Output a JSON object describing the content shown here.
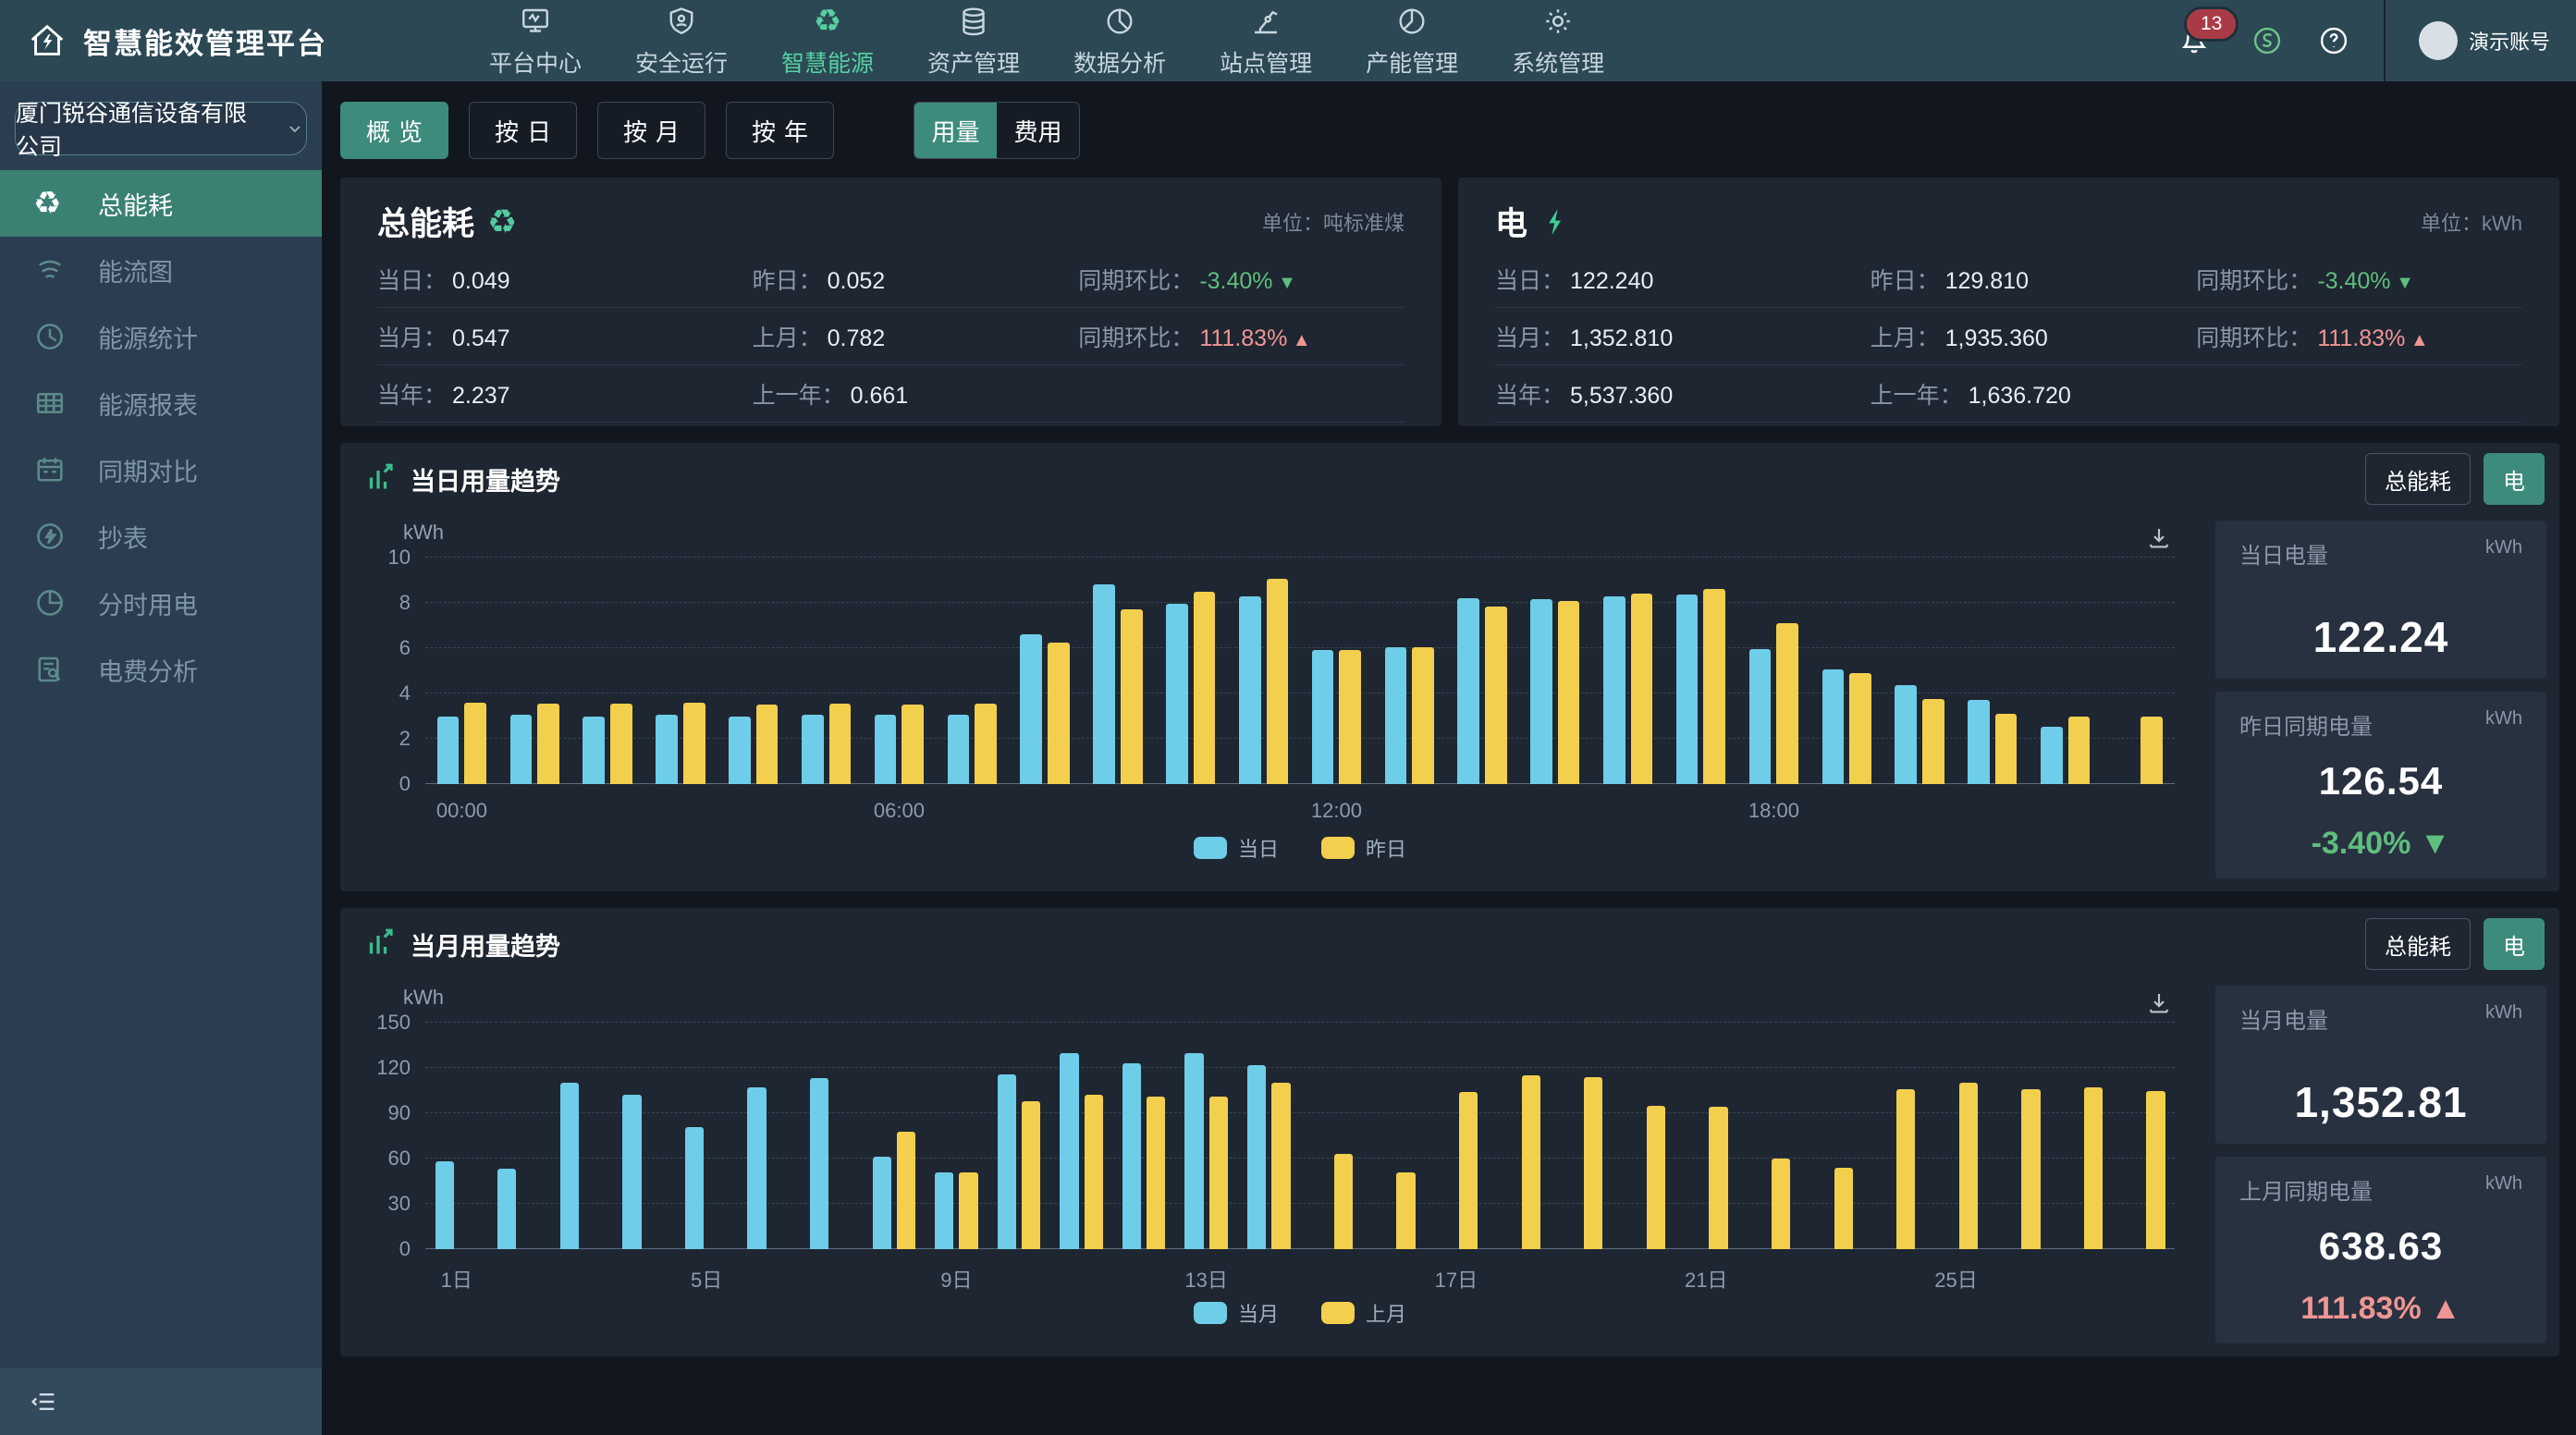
{
  "colors": {
    "accent": "#3d8b7d",
    "nav_active": "#57cfa2",
    "bar_blue": "#6ecde9",
    "bar_yellow": "#f3cf4e",
    "trend_down_green": "#5fbe7d",
    "trend_up_red": "#ef9694",
    "badge_red": "#a93b46"
  },
  "navbar": {
    "logo_title": "智慧能效管理平台",
    "items": [
      {
        "id": "platform-center",
        "label": "平台中心",
        "icon": "monitor-icon",
        "active": false
      },
      {
        "id": "safe-operation",
        "label": "安全运行",
        "icon": "shield-icon",
        "active": false
      },
      {
        "id": "smart-energy",
        "label": "智慧能源",
        "icon": "recycle-icon",
        "active": true
      },
      {
        "id": "asset-management",
        "label": "资产管理",
        "icon": "database-icon",
        "active": false
      },
      {
        "id": "data-analysis",
        "label": "数据分析",
        "icon": "pie-chart-icon",
        "active": false
      },
      {
        "id": "site-management",
        "label": "站点管理",
        "icon": "robot-arm-icon",
        "active": false
      },
      {
        "id": "capacity-management",
        "label": "产能管理",
        "icon": "pie-chart2-icon",
        "active": false
      },
      {
        "id": "system-management",
        "label": "系统管理",
        "icon": "gear-icon",
        "active": false
      }
    ],
    "badge_count": "13",
    "account_name": "演示账号"
  },
  "sidebar": {
    "company": "厦门锐谷通信设备有限公司",
    "items": [
      {
        "id": "total-energy",
        "label": "总能耗",
        "icon": "recycle-icon",
        "active": true
      },
      {
        "id": "energy-flow",
        "label": "能流图",
        "icon": "flow-waves-icon",
        "active": false
      },
      {
        "id": "energy-stats",
        "label": "能源统计",
        "icon": "clock-pie-icon",
        "active": false
      },
      {
        "id": "energy-report",
        "label": "能源报表",
        "icon": "table-icon",
        "active": false
      },
      {
        "id": "period-compare",
        "label": "同期对比",
        "icon": "calendar-icon",
        "active": false
      },
      {
        "id": "meter-reading",
        "label": "抄表",
        "icon": "lightning-circle-icon",
        "active": false
      },
      {
        "id": "tou-power",
        "label": "分时用电",
        "icon": "time-pie-icon",
        "active": false
      },
      {
        "id": "tariff-analysis",
        "label": "电费分析",
        "icon": "doc-search-icon",
        "active": false
      }
    ]
  },
  "toolbar": {
    "view_tabs": [
      {
        "label": "概览",
        "active": true
      },
      {
        "label": "按日",
        "active": false
      },
      {
        "label": "按月",
        "active": false
      },
      {
        "label": "按年",
        "active": false
      }
    ],
    "metric_tabs": [
      {
        "label": "用量",
        "active": true
      },
      {
        "label": "费用",
        "active": false
      }
    ]
  },
  "stat_cards": [
    {
      "title": "总能耗",
      "icon": "recycle-icon",
      "unit_label": "单位：吨标准煤",
      "rows": [
        [
          {
            "label": "当日：",
            "value": "0.049"
          },
          {
            "label": "昨日：",
            "value": "0.052"
          },
          {
            "label": "同期环比：",
            "value": "-3.40%",
            "trend": "down"
          }
        ],
        [
          {
            "label": "当月：",
            "value": "0.547"
          },
          {
            "label": "上月：",
            "value": "0.782"
          },
          {
            "label": "同期环比：",
            "value": "111.83%",
            "trend": "up"
          }
        ],
        [
          {
            "label": "当年：",
            "value": "2.237"
          },
          {
            "label": "上一年：",
            "value": "0.661"
          }
        ]
      ]
    },
    {
      "title": "电",
      "icon": "lightning-icon",
      "unit_label": "单位：kWh",
      "rows": [
        [
          {
            "label": "当日：",
            "value": "122.240"
          },
          {
            "label": "昨日：",
            "value": "129.810"
          },
          {
            "label": "同期环比：",
            "value": "-3.40%",
            "trend": "down"
          }
        ],
        [
          {
            "label": "当月：",
            "value": "1,352.810"
          },
          {
            "label": "上月：",
            "value": "1,935.360"
          },
          {
            "label": "同期环比：",
            "value": "111.83%",
            "trend": "up"
          }
        ],
        [
          {
            "label": "当年：",
            "value": "5,537.360"
          },
          {
            "label": "上一年：",
            "value": "1,636.720"
          }
        ]
      ]
    }
  ],
  "chart_panels": [
    {
      "title": "当日用量趋势",
      "type_buttons": [
        {
          "label": "总能耗",
          "active": false
        },
        {
          "label": "电",
          "active": true
        }
      ],
      "side_cards": [
        {
          "title": "当日电量",
          "unit": "kWh",
          "value": "122.24"
        },
        {
          "title": "昨日同期电量",
          "unit": "kWh",
          "value": "126.54",
          "delta": "-3.40%",
          "trend": "down"
        }
      ]
    },
    {
      "title": "当月用量趋势",
      "type_buttons": [
        {
          "label": "总能耗",
          "active": false
        },
        {
          "label": "电",
          "active": true
        }
      ],
      "side_cards": [
        {
          "title": "当月电量",
          "unit": "kWh",
          "value": "1,352.81"
        },
        {
          "title": "上月同期电量",
          "unit": "kWh",
          "value": "638.63",
          "delta": "111.83%",
          "trend": "up"
        }
      ]
    }
  ],
  "chart_data": [
    {
      "type": "bar",
      "title": "当日用量趋势",
      "ylabel": "kWh",
      "ylim": [
        0,
        10
      ],
      "yticks": [
        0,
        2,
        4,
        6,
        8,
        10
      ],
      "grid": true,
      "legend_position": "bottom",
      "xtick_every": 6,
      "categories": [
        "00:00",
        "01:00",
        "02:00",
        "03:00",
        "04:00",
        "05:00",
        "06:00",
        "07:00",
        "08:00",
        "09:00",
        "10:00",
        "11:00",
        "12:00",
        "13:00",
        "14:00",
        "15:00",
        "16:00",
        "17:00",
        "18:00",
        "19:00",
        "20:00",
        "21:00",
        "22:00",
        "23:00"
      ],
      "series": [
        {
          "name": "当日",
          "color": "#6ecde9",
          "values": [
            3.0,
            3.05,
            3.0,
            3.05,
            3.0,
            3.05,
            3.05,
            3.05,
            6.6,
            8.8,
            7.95,
            8.3,
            5.9,
            6.05,
            8.2,
            8.15,
            8.3,
            8.35,
            5.95,
            5.05,
            4.35,
            3.7,
            2.55,
            null
          ]
        },
        {
          "name": "昨日",
          "color": "#f3cf4e",
          "values": [
            3.6,
            3.55,
            3.55,
            3.6,
            3.5,
            3.55,
            3.5,
            3.55,
            6.25,
            7.7,
            8.5,
            9.05,
            5.9,
            6.05,
            7.85,
            8.1,
            8.4,
            8.6,
            7.1,
            4.9,
            3.75,
            3.1,
            3.0,
            3.0
          ]
        }
      ]
    },
    {
      "type": "bar",
      "title": "当月用量趋势",
      "ylabel": "kWh",
      "ylim": [
        0,
        150
      ],
      "yticks": [
        0,
        30,
        60,
        90,
        120,
        150
      ],
      "grid": true,
      "legend_position": "bottom",
      "xtick_every": 4,
      "categories": [
        "1日",
        "2日",
        "3日",
        "4日",
        "5日",
        "6日",
        "7日",
        "8日",
        "9日",
        "10日",
        "11日",
        "12日",
        "13日",
        "14日",
        "15日",
        "16日",
        "17日",
        "18日",
        "19日",
        "20日",
        "21日",
        "22日",
        "23日",
        "24日",
        "25日",
        "26日",
        "27日",
        "28日"
      ],
      "series": [
        {
          "name": "当月",
          "color": "#6ecde9",
          "values": [
            58,
            53,
            110,
            102,
            81,
            107,
            113,
            61,
            51,
            116,
            130,
            123,
            130,
            122,
            null,
            null,
            null,
            null,
            null,
            null,
            null,
            null,
            null,
            null,
            null,
            null,
            null,
            null
          ]
        },
        {
          "name": "上月",
          "color": "#f3cf4e",
          "values": [
            null,
            null,
            null,
            null,
            null,
            null,
            null,
            78,
            51,
            98,
            102,
            101,
            101,
            110,
            63,
            51,
            104,
            115,
            114,
            95,
            94,
            60,
            54,
            106,
            110,
            106,
            107,
            105
          ]
        }
      ]
    }
  ]
}
